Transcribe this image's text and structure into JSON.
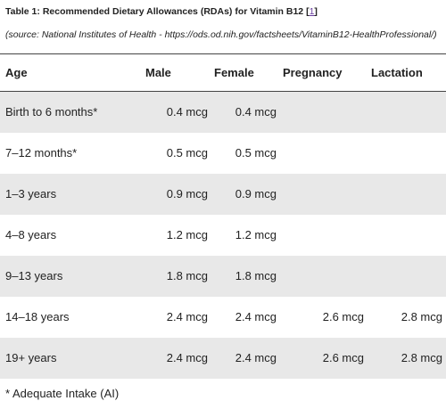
{
  "title": {
    "text": "Table 1: Recommended Dietary Allowances (RDAs) for Vitamin B12",
    "ref": "1"
  },
  "source": "(source: National Institutes of Health - https://ods.od.nih.gov/factsheets/VitaminB12-HealthProfessional/)",
  "table": {
    "header": [
      "Age",
      "Male",
      "Female",
      "Pregnancy",
      "Lactation"
    ],
    "rows": [
      [
        "Birth to 6 months*",
        "0.4 mcg",
        "0.4 mcg",
        null,
        null
      ],
      [
        "7–12 months*",
        "0.5 mcg",
        "0.5 mcg",
        null,
        null
      ],
      [
        "1–3 years",
        "0.9 mcg",
        "0.9 mcg",
        null,
        null
      ],
      [
        "4–8 years",
        "1.2 mcg",
        "1.2 mcg",
        null,
        null
      ],
      [
        "9–13 years",
        "1.8 mcg",
        "1.8 mcg",
        null,
        null
      ],
      [
        "14–18 years",
        "2.4 mcg",
        "2.4 mcg",
        "2.6 mcg",
        "2.8 mcg"
      ],
      [
        "19+ years",
        "2.4 mcg",
        "2.4 mcg",
        "2.6 mcg",
        "2.8 mcg"
      ]
    ]
  },
  "footnote": "* Adequate Intake (AI)"
}
